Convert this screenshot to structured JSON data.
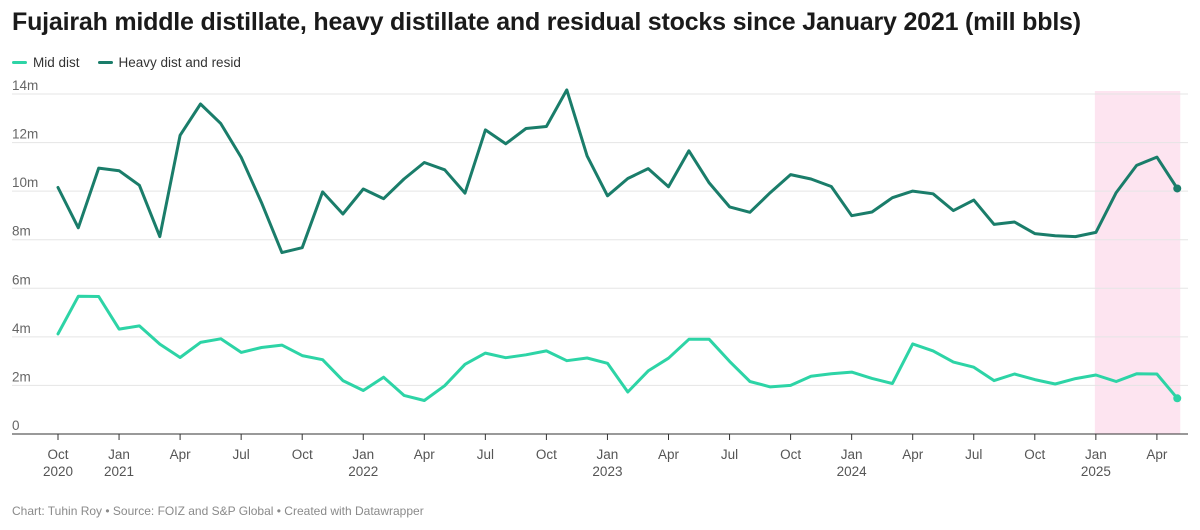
{
  "title": "Fujairah middle distillate, heavy distillate and residual stocks since January 2021 (mill bbls)",
  "footer": "Chart: Tuhin Roy • Source: FOIZ and S&P Global • Created with Datawrapper",
  "colors": {
    "mid": "#2dd4a6",
    "heavy": "#1a7d6a",
    "highlight": "#fde4f0",
    "grid": "#e5e5e5"
  },
  "chart_data": {
    "type": "line",
    "xlabel": "",
    "ylabel": "",
    "ylim": [
      0,
      14
    ],
    "y_ticks": [
      {
        "value": 0,
        "label": "0"
      },
      {
        "value": 2,
        "label": "2m"
      },
      {
        "value": 4,
        "label": "4m"
      },
      {
        "value": 6,
        "label": "6m"
      },
      {
        "value": 8,
        "label": "8m"
      },
      {
        "value": 10,
        "label": "10m"
      },
      {
        "value": 12,
        "label": "12m"
      },
      {
        "value": 14,
        "label": "14m"
      }
    ],
    "x": [
      "2020-10",
      "2020-11",
      "2020-12",
      "2021-01",
      "2021-02",
      "2021-03",
      "2021-04",
      "2021-05",
      "2021-06",
      "2021-07",
      "2021-08",
      "2021-09",
      "2021-10",
      "2021-11",
      "2021-12",
      "2022-01",
      "2022-02",
      "2022-03",
      "2022-04",
      "2022-05",
      "2022-06",
      "2022-07",
      "2022-08",
      "2022-09",
      "2022-10",
      "2022-11",
      "2022-12",
      "2023-01",
      "2023-02",
      "2023-03",
      "2023-04",
      "2023-05",
      "2023-06",
      "2023-07",
      "2023-08",
      "2023-09",
      "2023-10",
      "2023-11",
      "2023-12",
      "2024-01",
      "2024-02",
      "2024-03",
      "2024-04",
      "2024-05",
      "2024-06",
      "2024-07",
      "2024-08",
      "2024-09",
      "2024-10",
      "2024-11",
      "2024-12",
      "2025-01",
      "2025-02",
      "2025-03",
      "2025-04",
      "2025-05"
    ],
    "x_ticks": [
      {
        "index": 0,
        "line1": "Oct",
        "line2": "2020"
      },
      {
        "index": 3,
        "line1": "Jan",
        "line2": "2021"
      },
      {
        "index": 6,
        "line1": "Apr",
        "line2": ""
      },
      {
        "index": 9,
        "line1": "Jul",
        "line2": ""
      },
      {
        "index": 12,
        "line1": "Oct",
        "line2": ""
      },
      {
        "index": 15,
        "line1": "Jan",
        "line2": "2022"
      },
      {
        "index": 18,
        "line1": "Apr",
        "line2": ""
      },
      {
        "index": 21,
        "line1": "Jul",
        "line2": ""
      },
      {
        "index": 24,
        "line1": "Oct",
        "line2": ""
      },
      {
        "index": 27,
        "line1": "Jan",
        "line2": "2023"
      },
      {
        "index": 30,
        "line1": "Apr",
        "line2": ""
      },
      {
        "index": 33,
        "line1": "Jul",
        "line2": ""
      },
      {
        "index": 36,
        "line1": "Oct",
        "line2": ""
      },
      {
        "index": 39,
        "line1": "Jan",
        "line2": "2024"
      },
      {
        "index": 42,
        "line1": "Apr",
        "line2": ""
      },
      {
        "index": 45,
        "line1": "Jul",
        "line2": ""
      },
      {
        "index": 48,
        "line1": "Oct",
        "line2": ""
      },
      {
        "index": 51,
        "line1": "Jan",
        "line2": "2025"
      },
      {
        "index": 54,
        "line1": "Apr",
        "line2": ""
      }
    ],
    "highlight_range": [
      "2025-01",
      "2025-05"
    ],
    "series": [
      {
        "name": "Mid dist",
        "values": [
          4.12,
          5.67,
          5.66,
          4.32,
          4.45,
          3.7,
          3.15,
          3.77,
          3.92,
          3.36,
          3.56,
          3.66,
          3.23,
          3.06,
          2.2,
          1.79,
          2.34,
          1.59,
          1.38,
          1.99,
          2.87,
          3.33,
          3.14,
          3.26,
          3.42,
          3.02,
          3.13,
          2.91,
          1.73,
          2.6,
          3.12,
          3.9,
          3.9,
          2.99,
          2.16,
          1.94,
          2.0,
          2.38,
          2.48,
          2.55,
          2.29,
          2.08,
          3.71,
          3.42,
          2.96,
          2.75,
          2.2,
          2.47,
          2.24,
          2.06,
          2.28,
          2.43,
          2.16,
          2.48,
          2.47,
          1.47
        ]
      },
      {
        "name": "Heavy dist and resid",
        "values": [
          10.15,
          8.49,
          10.95,
          10.84,
          10.24,
          8.13,
          12.3,
          13.59,
          12.78,
          11.39,
          9.53,
          7.47,
          7.67,
          9.97,
          9.06,
          10.09,
          9.69,
          10.5,
          11.18,
          10.88,
          9.92,
          12.52,
          11.95,
          12.58,
          12.66,
          14.17,
          11.45,
          9.81,
          10.52,
          10.93,
          10.18,
          11.66,
          10.34,
          9.35,
          9.13,
          9.94,
          10.68,
          10.5,
          10.19,
          8.99,
          9.14,
          9.73,
          10.0,
          9.89,
          9.2,
          9.63,
          8.63,
          8.73,
          8.25,
          8.16,
          8.13,
          8.3,
          9.94,
          11.06,
          11.4,
          10.11
        ]
      }
    ]
  }
}
